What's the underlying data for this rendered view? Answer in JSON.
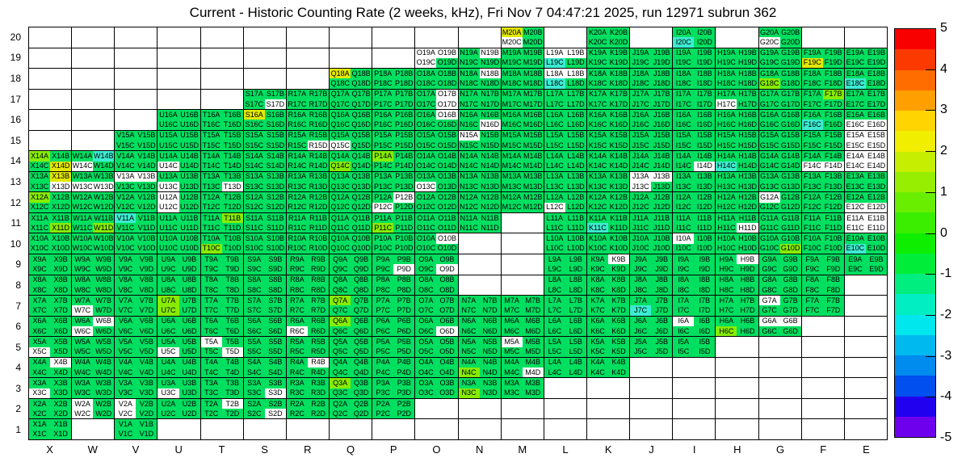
{
  "chart_data": {
    "type": "heatmap",
    "title": "Current - Historic Counting Rate (2 weeks, kHz), Fri Nov 7 04:47:21 2025, run 12971 subrun 362",
    "x_categories": [
      "X",
      "W",
      "V",
      "U",
      "T",
      "S",
      "R",
      "Q",
      "P",
      "O",
      "N",
      "M",
      "L",
      "K",
      "J",
      "I",
      "H",
      "G",
      "F",
      "E"
    ],
    "y_categories": [
      20,
      19,
      18,
      17,
      16,
      15,
      14,
      13,
      12,
      11,
      10,
      9,
      8,
      7,
      6,
      5,
      4,
      3,
      2,
      1
    ],
    "cell_quadrants": [
      "A",
      "B",
      "C",
      "D"
    ],
    "legend_position": "right",
    "grid_lines": true,
    "colorbar": {
      "min": -5,
      "max": 5,
      "tick_labels": [
        "5",
        "4",
        "3",
        "2",
        "1",
        "0",
        "-1",
        "-2",
        "-3",
        "-4",
        "-5"
      ],
      "band_colors": [
        "#f80000",
        "#fc3a00",
        "#ff6c00",
        "#ffa000",
        "#ffd400",
        "#f1ee00",
        "#c6ee00",
        "#97ee00",
        "#69ee00",
        "#3bee00",
        "#0dee00",
        "#00ee3a",
        "#00ee7f",
        "#00eec2",
        "#00e7ee",
        "#00b9ee",
        "#008bee",
        "#004fee",
        "#2000ee",
        "#6e00ee"
      ]
    },
    "palette": {
      "green": "#00df60",
      "lime": "#87ec00",
      "yellow": "#e3e800",
      "cyan": "#3cecd1",
      "white": "#ffffff"
    },
    "value_legend": {
      "green": -0.3,
      "lime": 1.3,
      "yellow": 2.4,
      "cyan": -1.4,
      "white": null
    },
    "present_columns_by_row": {
      "20": [
        "M",
        "K",
        "I",
        "G"
      ],
      "19": [
        "O",
        "N",
        "M",
        "L",
        "K",
        "J",
        "I",
        "H",
        "G",
        "F",
        "E"
      ],
      "18": [
        "Q",
        "P",
        "O",
        "N",
        "M",
        "L",
        "K",
        "J",
        "I",
        "H",
        "G",
        "F",
        "E"
      ],
      "17": [
        "S",
        "R",
        "Q",
        "P",
        "O",
        "N",
        "M",
        "L",
        "K",
        "J",
        "I",
        "H",
        "G",
        "F",
        "E"
      ],
      "16": [
        "U",
        "T",
        "S",
        "R",
        "Q",
        "P",
        "O",
        "N",
        "M",
        "L",
        "K",
        "J",
        "I",
        "H",
        "G",
        "F",
        "E"
      ],
      "15": [
        "V",
        "U",
        "T",
        "S",
        "R",
        "Q",
        "P",
        "O",
        "N",
        "M",
        "L",
        "K",
        "J",
        "I",
        "H",
        "G",
        "F",
        "E"
      ],
      "14": [
        "X",
        "W",
        "V",
        "U",
        "T",
        "S",
        "R",
        "Q",
        "P",
        "O",
        "N",
        "M",
        "L",
        "K",
        "J",
        "I",
        "H",
        "G",
        "F",
        "E"
      ],
      "13": [
        "X",
        "W",
        "V",
        "U",
        "T",
        "S",
        "R",
        "Q",
        "P",
        "O",
        "N",
        "M",
        "L",
        "K",
        "J",
        "I",
        "H",
        "G",
        "F",
        "E"
      ],
      "12": [
        "X",
        "W",
        "V",
        "U",
        "T",
        "S",
        "R",
        "Q",
        "P",
        "O",
        "N",
        "M",
        "L",
        "K",
        "J",
        "I",
        "H",
        "G",
        "F",
        "E"
      ],
      "11": [
        "X",
        "W",
        "V",
        "U",
        "T",
        "S",
        "R",
        "Q",
        "P",
        "O",
        "N",
        "L",
        "K",
        "J",
        "I",
        "H",
        "G",
        "F",
        "E"
      ],
      "10": [
        "X",
        "W",
        "V",
        "U",
        "T",
        "S",
        "R",
        "Q",
        "P",
        "O",
        "L",
        "K",
        "J",
        "I",
        "H",
        "G",
        "F",
        "E"
      ],
      "9": [
        "X",
        "W",
        "V",
        "U",
        "T",
        "S",
        "R",
        "Q",
        "P",
        "O",
        "L",
        "K",
        "J",
        "I",
        "H",
        "G",
        "F",
        "E"
      ],
      "8": [
        "X",
        "W",
        "V",
        "U",
        "T",
        "S",
        "R",
        "Q",
        "P",
        "O",
        "L",
        "K",
        "J",
        "I",
        "H",
        "G",
        "F"
      ],
      "7": [
        "X",
        "W",
        "V",
        "U",
        "T",
        "S",
        "R",
        "Q",
        "P",
        "O",
        "N",
        "M",
        "L",
        "K",
        "J",
        "I",
        "H",
        "G",
        "F"
      ],
      "6": [
        "X",
        "W",
        "V",
        "U",
        "T",
        "S",
        "R",
        "Q",
        "P",
        "O",
        "N",
        "M",
        "L",
        "K",
        "J",
        "I",
        "H",
        "G"
      ],
      "5": [
        "X",
        "W",
        "V",
        "U",
        "T",
        "S",
        "R",
        "Q",
        "P",
        "O",
        "N",
        "M",
        "L",
        "K",
        "J",
        "I"
      ],
      "4": [
        "X",
        "W",
        "V",
        "U",
        "T",
        "S",
        "R",
        "Q",
        "P",
        "O",
        "N",
        "M",
        "L",
        "K"
      ],
      "3": [
        "X",
        "W",
        "V",
        "U",
        "T",
        "S",
        "R",
        "Q",
        "P",
        "O",
        "N",
        "M"
      ],
      "2": [
        "X",
        "W",
        "V",
        "U",
        "T",
        "S",
        "R",
        "Q",
        "P"
      ],
      "1": [
        "X",
        "V"
      ]
    },
    "anomalies": {
      "M20A": "yellow",
      "M20C": "white",
      "I20C": "cyan",
      "G20C": "white",
      "O19A": "white",
      "O19B": "white",
      "O19C": "white",
      "N19B": "white",
      "L19A": "white",
      "L19B": "white",
      "L19C": "cyan",
      "F19C": "yellow",
      "Q18A": "yellow",
      "N18B": "white",
      "L18A": "white",
      "L18B": "white",
      "L18C": "cyan",
      "G18C": "lime",
      "E18C": "cyan",
      "S17D": "white",
      "O17B": "white",
      "O17D": "white",
      "H17C": "white",
      "F17B": "lime",
      "S16A": "yellow",
      "O16B": "white",
      "N16D": "white",
      "F16C": "cyan",
      "E16C": "white",
      "E16D": "white",
      "R15D": "white",
      "Q15C": "white",
      "N15A": "white",
      "E15A": "white",
      "E15B": "white",
      "E15C": "white",
      "E15D": "white",
      "X14A": "lime",
      "X14D": "yellow",
      "W14B": "cyan",
      "W14C": "white",
      "U14C": "white",
      "Q14C": "lime",
      "P14A": "lime",
      "I14D": "white",
      "H14C": "cyan",
      "F14C": "white",
      "F14D": "white",
      "E14A": "white",
      "E14B": "white",
      "E14C": "white",
      "E14D": "white",
      "X13B": "yellow",
      "X13D": "white",
      "W13C": "white",
      "W13D": "white",
      "V13A": "white",
      "V13B": "white",
      "U13C": "white",
      "T13D": "white",
      "O13C": "white",
      "J13A": "white",
      "J13B": "white",
      "J13C": "white",
      "X12A": "lime",
      "U12A": "white",
      "U12C": "white",
      "P12B": "white",
      "P12C": "white",
      "L12C": "white",
      "G12A": "white",
      "E12C": "white",
      "E12D": "white",
      "X11D": "lime",
      "W11D": "lime",
      "V11A": "cyan",
      "T11B": "lime",
      "P11C": "lime",
      "K11C": "cyan",
      "H11D": "white",
      "E11A": "white",
      "E11B": "white",
      "E11C": "white",
      "E11D": "white",
      "T10C": "lime",
      "O10B": "white",
      "I10A": "white",
      "G10D": "lime",
      "E10C": "cyan",
      "P9D": "white",
      "O9D": "white",
      "K9B": "white",
      "H9B": "white",
      "W7C": "white",
      "U7A": "lime",
      "U7C": "lime",
      "Q7A": "lime",
      "J7C": "cyan",
      "G7A": "white",
      "W6B": "white",
      "W6C": "white",
      "R6C": "white",
      "Q6A": "lime",
      "O6D": "white",
      "I6A": "white",
      "H6C": "lime",
      "G6A": "white",
      "G6B": "white",
      "X5C": "white",
      "U5C": "white",
      "T5A": "white",
      "T5D": "white",
      "M5A": "white",
      "X4B": "white",
      "R4B": "white",
      "N4C": "lime",
      "M4D": "white",
      "X3C": "white",
      "U3C": "white",
      "S3D": "white",
      "Q3A": "lime",
      "N3C": "lime",
      "W2A": "white",
      "W2C": "white",
      "V2A": "white",
      "V2C": "white",
      "T2B": "white",
      "S2D": "white"
    }
  }
}
